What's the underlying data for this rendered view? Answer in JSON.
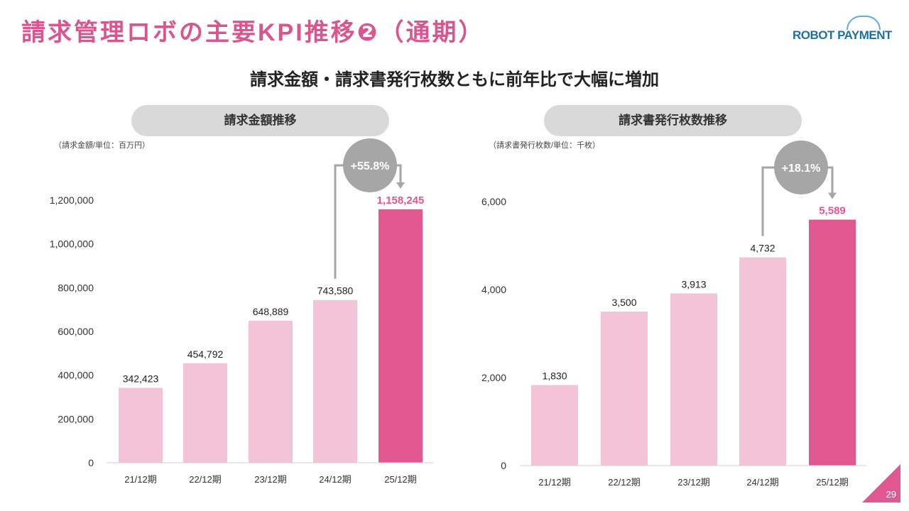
{
  "header": {
    "title": "請求管理ロボの主要KPI推移❷（通期）",
    "logo": "ROBOT PAYMENT",
    "subtitle": "請求金額・請求書発行枚数ともに前年比で大幅に増加"
  },
  "page_number": "29",
  "colors": {
    "accent": "#e0588f",
    "bar": "#f3c4d8",
    "grey": "#a6a6a6"
  },
  "chart_data": [
    {
      "type": "bar",
      "title": "請求金額推移",
      "unit_label": "（請求金額/単位：百万円）",
      "categories": [
        "21/12期",
        "22/12期",
        "23/12期",
        "24/12期",
        "25/12期"
      ],
      "values": [
        342423,
        454792,
        648889,
        743580,
        1158245
      ],
      "value_labels": [
        "342,423",
        "454,792",
        "648,889",
        "743,580",
        "1,158,245"
      ],
      "yticks": [
        0,
        200000,
        400000,
        600000,
        800000,
        1000000,
        1200000
      ],
      "ytick_labels": [
        "0",
        "200,000",
        "400,000",
        "600,000",
        "800,000",
        "1,000,000",
        "1,200,000"
      ],
      "ylim": [
        0,
        1200000
      ],
      "highlight_index": 4,
      "growth_label": "+55.8%"
    },
    {
      "type": "bar",
      "title": "請求書発行枚数推移",
      "unit_label": "（請求書発行枚数/単位：千枚）",
      "categories": [
        "21/12期",
        "22/12期",
        "23/12期",
        "24/12期",
        "25/12期"
      ],
      "values": [
        1830,
        3500,
        3913,
        4732,
        5589
      ],
      "value_labels": [
        "1,830",
        "3,500",
        "3,913",
        "4,732",
        "5,589"
      ],
      "yticks": [
        0,
        2000,
        4000,
        6000
      ],
      "ytick_labels": [
        "0",
        "2,000",
        "4,000",
        "6,000"
      ],
      "ylim": [
        0,
        6000
      ],
      "highlight_index": 4,
      "growth_label": "+18.1%"
    }
  ]
}
